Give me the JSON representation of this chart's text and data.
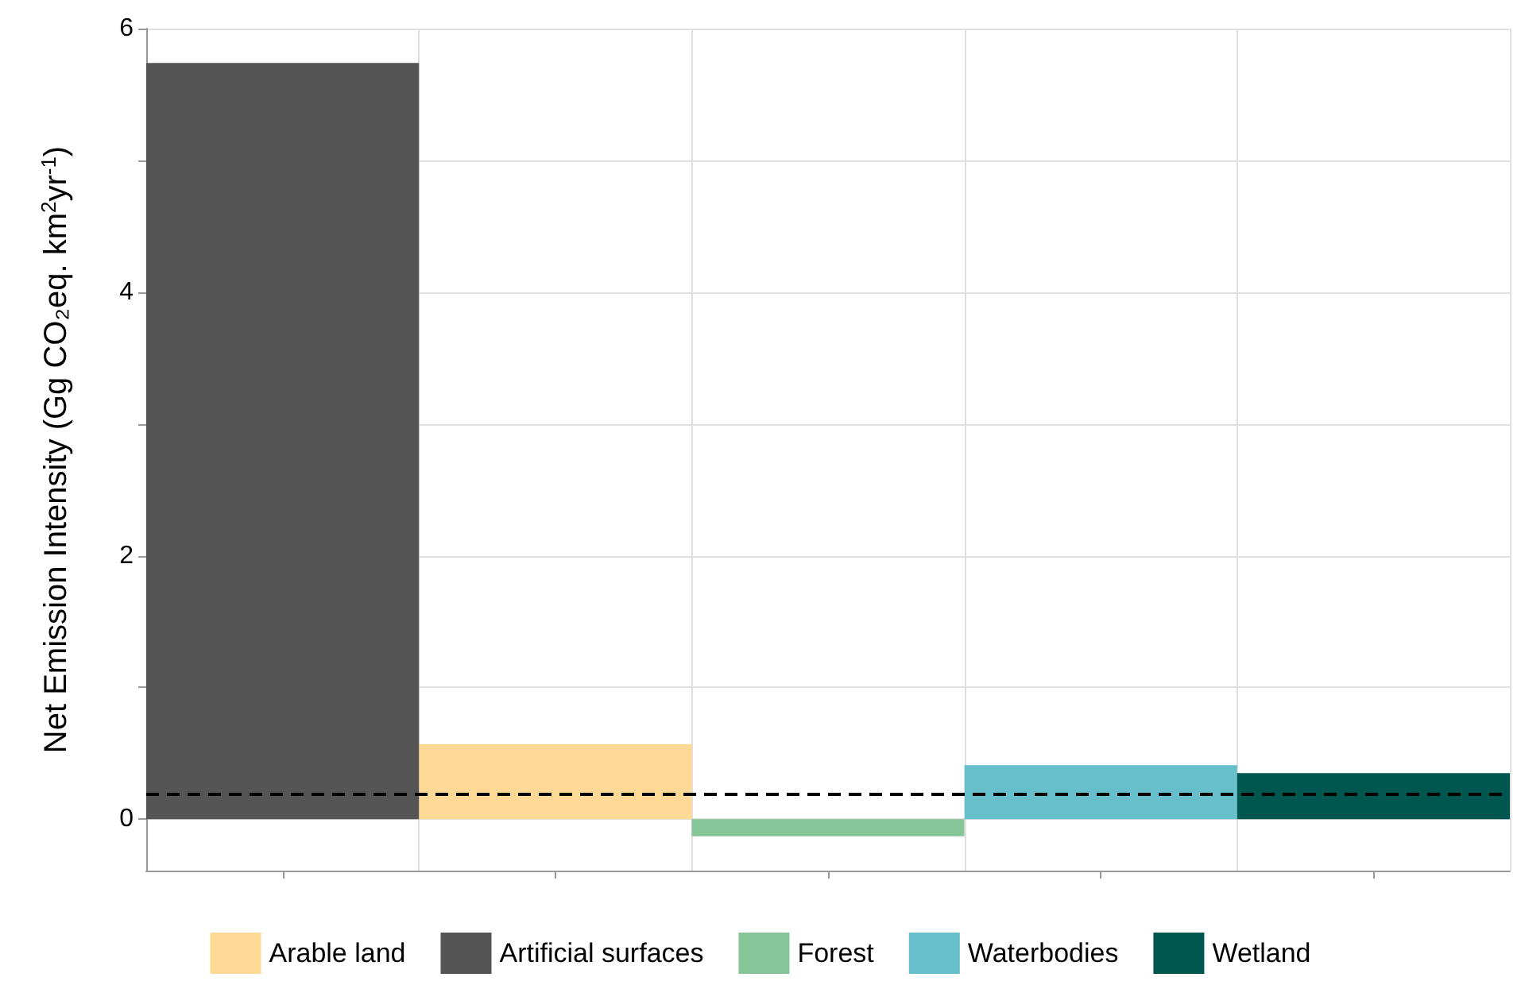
{
  "chart_data": {
    "type": "bar",
    "ylabel": "Net Emission Intensity (Gg CO₂eq. km$^{2}$yr$^{-1}$)",
    "categories": [
      null,
      null,
      null,
      null,
      null
    ],
    "stacked": true,
    "series": [
      {
        "name": "Arable land",
        "color": "#fdd995",
        "values": [
          null,
          0.57,
          null,
          null,
          null
        ]
      },
      {
        "name": "Artificial surfaces",
        "color": "#555555",
        "values": [
          5.74,
          null,
          null,
          null,
          null
        ]
      },
      {
        "name": "Forest",
        "color": "#86c597",
        "values": [
          null,
          null,
          -0.13,
          null,
          null
        ]
      },
      {
        "name": "Waterbodies",
        "color": "#66bfcb",
        "values": [
          null,
          null,
          null,
          0.41,
          null
        ]
      },
      {
        "name": "Wetland",
        "color": "#00574f",
        "values": [
          null,
          null,
          null,
          null,
          0.35
        ]
      }
    ],
    "ylim": [
      -0.39,
      6.0
    ],
    "yticks": [
      0,
      {
        "value": 1,
        "label": null
      },
      2,
      {
        "value": 3,
        "label": null
      },
      4,
      {
        "value": 5,
        "label": null
      },
      6
    ],
    "ref_lines": [
      {
        "axis": "y",
        "value": 0.19,
        "color": "#000000",
        "line_style": "dashed"
      }
    ],
    "grid": true,
    "legend": "bottom"
  }
}
